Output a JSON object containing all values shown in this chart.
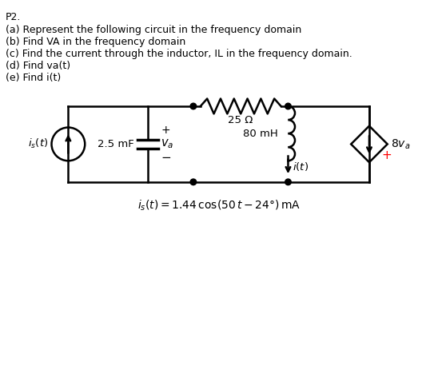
{
  "title": "P2.",
  "questions": [
    "(a) Represent the following circuit in the frequency domain",
    "(b) Find VA in the frequency domain",
    "(c) Find the current through the inductor, IL in the frequency domain.",
    "(d) Find va(t)",
    "(e) Find i(t)"
  ],
  "bg_color": "#ffffff",
  "text_color": "#000000",
  "red_color": "#ff0000",
  "line_color": "#000000",
  "circuit_linewidth": 1.8,
  "capacitor_label": "2.5 mF",
  "resistor_label": "25 Ω",
  "inductor_label": "80 mH",
  "dep_source_label": "8 v_a",
  "source_equation": "i_s(t) = 1.44 cos(50 t −24°) mA"
}
